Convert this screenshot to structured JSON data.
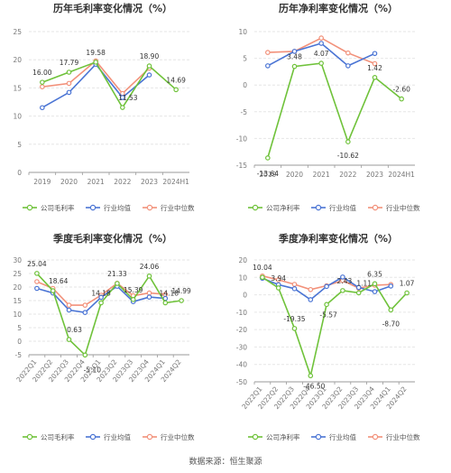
{
  "source": "数据来源：恒生聚源",
  "colors": {
    "company": "#6fc23a",
    "avg": "#4a74d4",
    "median": "#f2917a",
    "grid": "#e6e6e6",
    "axis": "#999999",
    "text": "#333333",
    "tick": "#777777"
  },
  "chart_data": [
    {
      "id": "c1",
      "type": "line",
      "title": "历年毛利率变化情况（%）",
      "categories": [
        "2019",
        "2020",
        "2021",
        "2022",
        "2023",
        "2024H1"
      ],
      "ylim": [
        0,
        25
      ],
      "yticks": [
        "0",
        "5",
        "10",
        "15",
        "20",
        "25"
      ],
      "grid": true,
      "legend_position": "bottom",
      "series": [
        {
          "name": "公司毛利率",
          "role": "company",
          "values": [
            16.0,
            17.79,
            19.58,
            11.53,
            18.9,
            14.69
          ],
          "labels": [
            "16.00",
            "17.79",
            "19.58",
            "11.53",
            "18.90",
            "14.69"
          ]
        },
        {
          "name": "行业均值",
          "role": "avg",
          "values": [
            11.5,
            14.2,
            19.2,
            13.3,
            17.3,
            null
          ]
        },
        {
          "name": "行业中位数",
          "role": "median",
          "values": [
            15.2,
            15.8,
            19.8,
            14.0,
            18.5,
            null
          ]
        }
      ]
    },
    {
      "id": "c2",
      "type": "line",
      "title": "历年净利率变化情况（%）",
      "categories": [
        "2019",
        "2020",
        "2021",
        "2022",
        "2023",
        "2024H1"
      ],
      "ylim": [
        -15,
        10
      ],
      "yticks": [
        "-15",
        "-10",
        "-5",
        "0",
        "5",
        "10"
      ],
      "grid": true,
      "legend_position": "bottom",
      "series": [
        {
          "name": "公司净利率",
          "role": "company",
          "values": [
            -13.64,
            3.48,
            4.07,
            -10.62,
            1.42,
            -2.6
          ],
          "labels": [
            "-13.64",
            "3.48",
            "4.07",
            "-10.62",
            "1.42",
            "-2.60"
          ]
        },
        {
          "name": "行业均值",
          "role": "avg",
          "values": [
            3.6,
            6.3,
            7.8,
            3.6,
            5.9,
            null
          ]
        },
        {
          "name": "行业中位数",
          "role": "median",
          "values": [
            6.1,
            6.3,
            8.8,
            6.0,
            4.0,
            null
          ]
        }
      ]
    },
    {
      "id": "c3",
      "type": "line",
      "title": "季度毛利率变化情况（%）",
      "categories": [
        "2022Q1",
        "2022Q2",
        "2022Q3",
        "2022Q4",
        "2023Q1",
        "2023Q2",
        "2023Q3",
        "2023Q4",
        "2024Q1",
        "2024Q2"
      ],
      "ylim": [
        -5,
        30
      ],
      "yticks": [
        "-5",
        "0",
        "5",
        "10",
        "15",
        "20",
        "25",
        "30"
      ],
      "grid": true,
      "legend_position": "bottom",
      "series": [
        {
          "name": "公司毛利率",
          "role": "company",
          "values": [
            25.04,
            18.64,
            0.63,
            -5.1,
            14.18,
            21.33,
            15.39,
            24.06,
            14.18,
            14.99
          ],
          "labels": [
            "25.04",
            "18.64",
            "0.63",
            "-5.10",
            "14.18",
            "21.33",
            "15.39",
            "24.06",
            "14.18",
            "14.99"
          ]
        },
        {
          "name": "行业均值",
          "role": "avg",
          "values": [
            19.5,
            17.8,
            11.5,
            10.6,
            16.2,
            20.3,
            14.6,
            16.3,
            15.8,
            null
          ]
        },
        {
          "name": "行业中位数",
          "role": "median",
          "values": [
            22.0,
            19.5,
            13.3,
            13.3,
            17.0,
            21.4,
            16.8,
            17.8,
            17.3,
            null
          ]
        }
      ]
    },
    {
      "id": "c4",
      "type": "line",
      "title": "季度净利率变化情况（%）",
      "categories": [
        "2022Q1",
        "2022Q2",
        "2022Q3",
        "2022Q4",
        "2023Q1",
        "2023Q2",
        "2023Q3",
        "2023Q4",
        "2024Q1",
        "2024Q2"
      ],
      "ylim": [
        -50,
        20
      ],
      "yticks": [
        "-50",
        "-40",
        "-30",
        "-20",
        "-10",
        "0",
        "10",
        "20"
      ],
      "grid": true,
      "legend_position": "bottom",
      "series": [
        {
          "name": "公司净利率",
          "role": "company",
          "values": [
            10.04,
            3.94,
            -19.35,
            -46.5,
            -5.57,
            2.43,
            1.11,
            6.35,
            -8.7,
            1.07
          ],
          "labels": [
            "10.04",
            "3.94",
            "-19.35",
            "-46.50",
            "-5.57",
            "2.43",
            "1.11",
            "6.35",
            "-8.70",
            "1.07"
          ]
        },
        {
          "name": "行业均值",
          "role": "avg",
          "values": [
            9.5,
            5.8,
            3.5,
            -2.8,
            4.8,
            10.2,
            4.2,
            1.8,
            5.0,
            null
          ]
        },
        {
          "name": "行业中位数",
          "role": "median",
          "values": [
            10.8,
            8.6,
            6.0,
            3.0,
            5.2,
            8.2,
            3.8,
            5.5,
            5.9,
            null
          ]
        }
      ]
    }
  ]
}
